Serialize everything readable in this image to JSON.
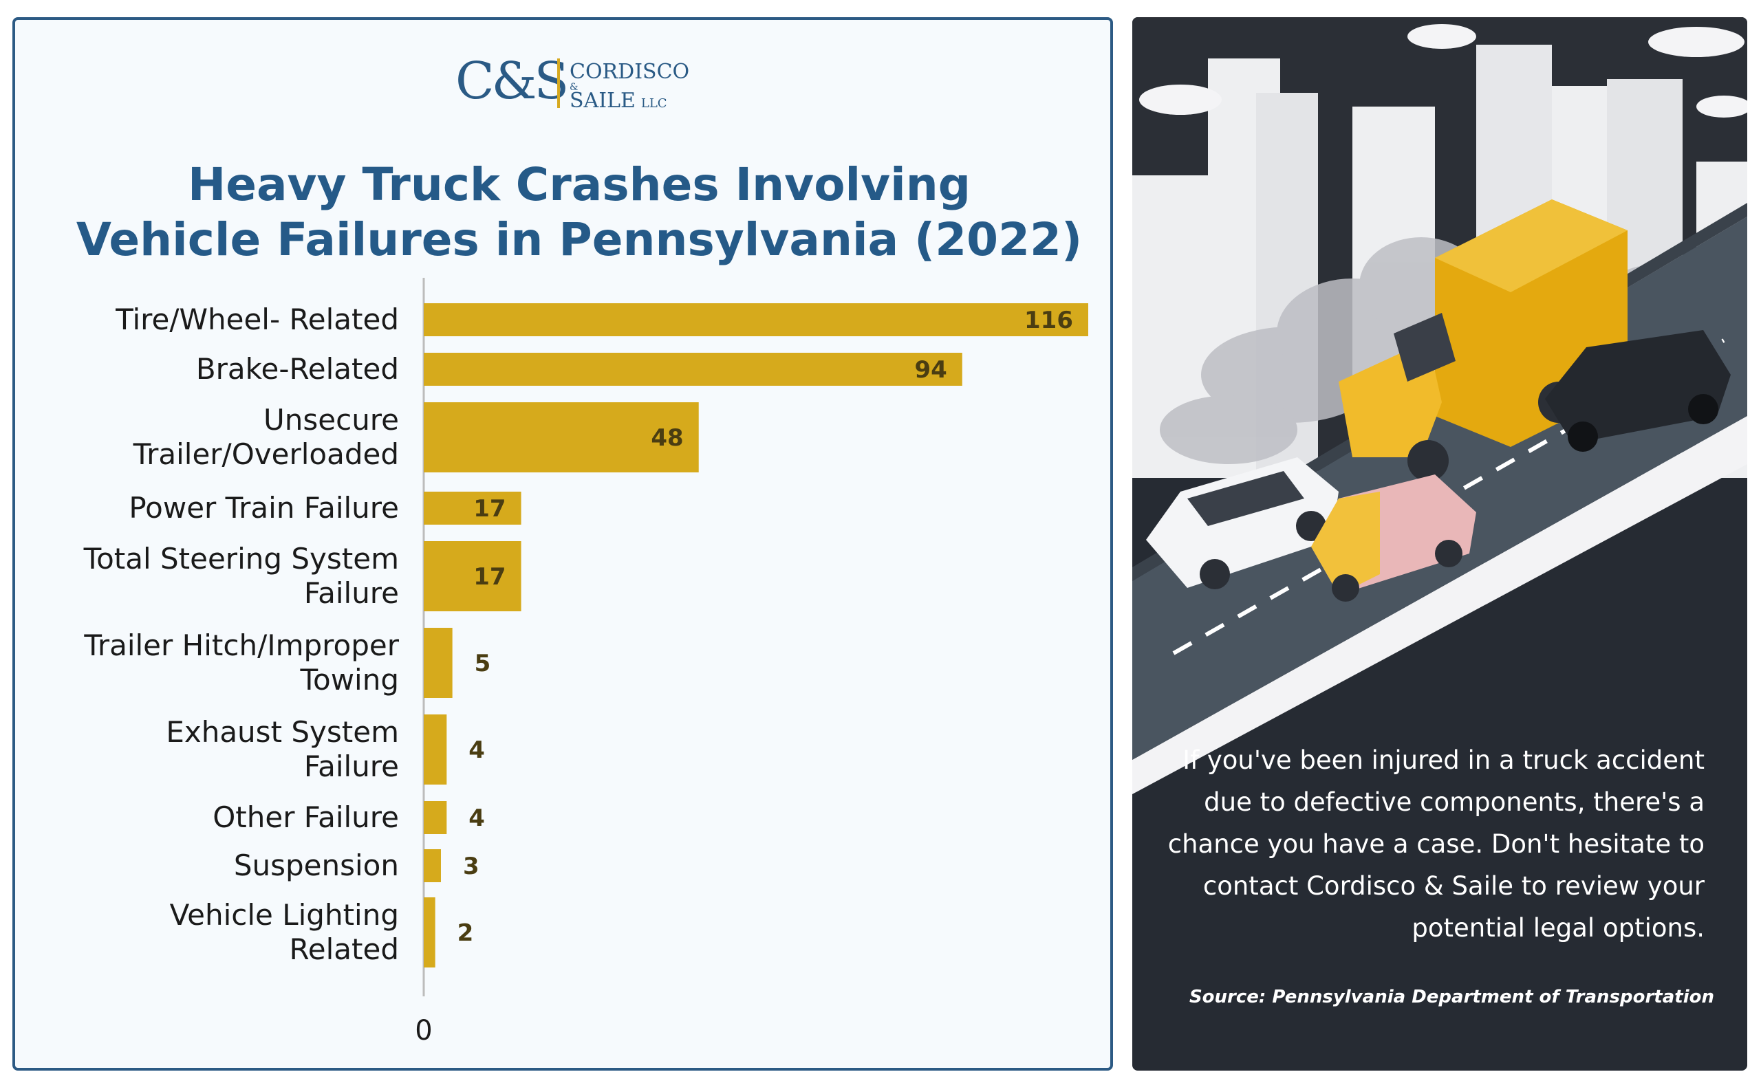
{
  "logo": {
    "mark": "C&S",
    "line1": "CORDISCO",
    "amp": "&",
    "line2": "SAILE",
    "suffix": "LLC"
  },
  "cta": "If you've been injured in a truck accident due to defective components, there's a chance you have a case. Don't hesitate to contact Cordisco & Saile to review your potential legal options.",
  "source": "Source: Pennsylvania Department of Transportation",
  "colors": {
    "bar": "#d6aa1c",
    "title": "#255a88",
    "panel_border": "#2c5a84",
    "dark_panel": "#262b33"
  },
  "chart_data": {
    "type": "bar",
    "orientation": "horizontal",
    "title": "Heavy Truck Crashes Involving\nVehicle Failures in Pennsylvania (2022)",
    "categories": [
      [
        "Tire/Wheel- Related"
      ],
      [
        "Brake-Related"
      ],
      [
        "Unsecure",
        "Trailer/Overloaded"
      ],
      [
        "Power Train Failure"
      ],
      [
        "Total Steering System",
        "Failure"
      ],
      [
        "Trailer Hitch/Improper",
        "Towing"
      ],
      [
        "Exhaust System",
        "Failure"
      ],
      [
        "Other Failure"
      ],
      [
        "Suspension"
      ],
      [
        "Vehicle Lighting",
        "Related"
      ]
    ],
    "values": [
      116,
      94,
      48,
      17,
      17,
      5,
      4,
      4,
      3,
      2
    ],
    "xlim": [
      0,
      116
    ],
    "x_tick_labels": [
      "0"
    ],
    "grid": false,
    "legend": "none"
  }
}
